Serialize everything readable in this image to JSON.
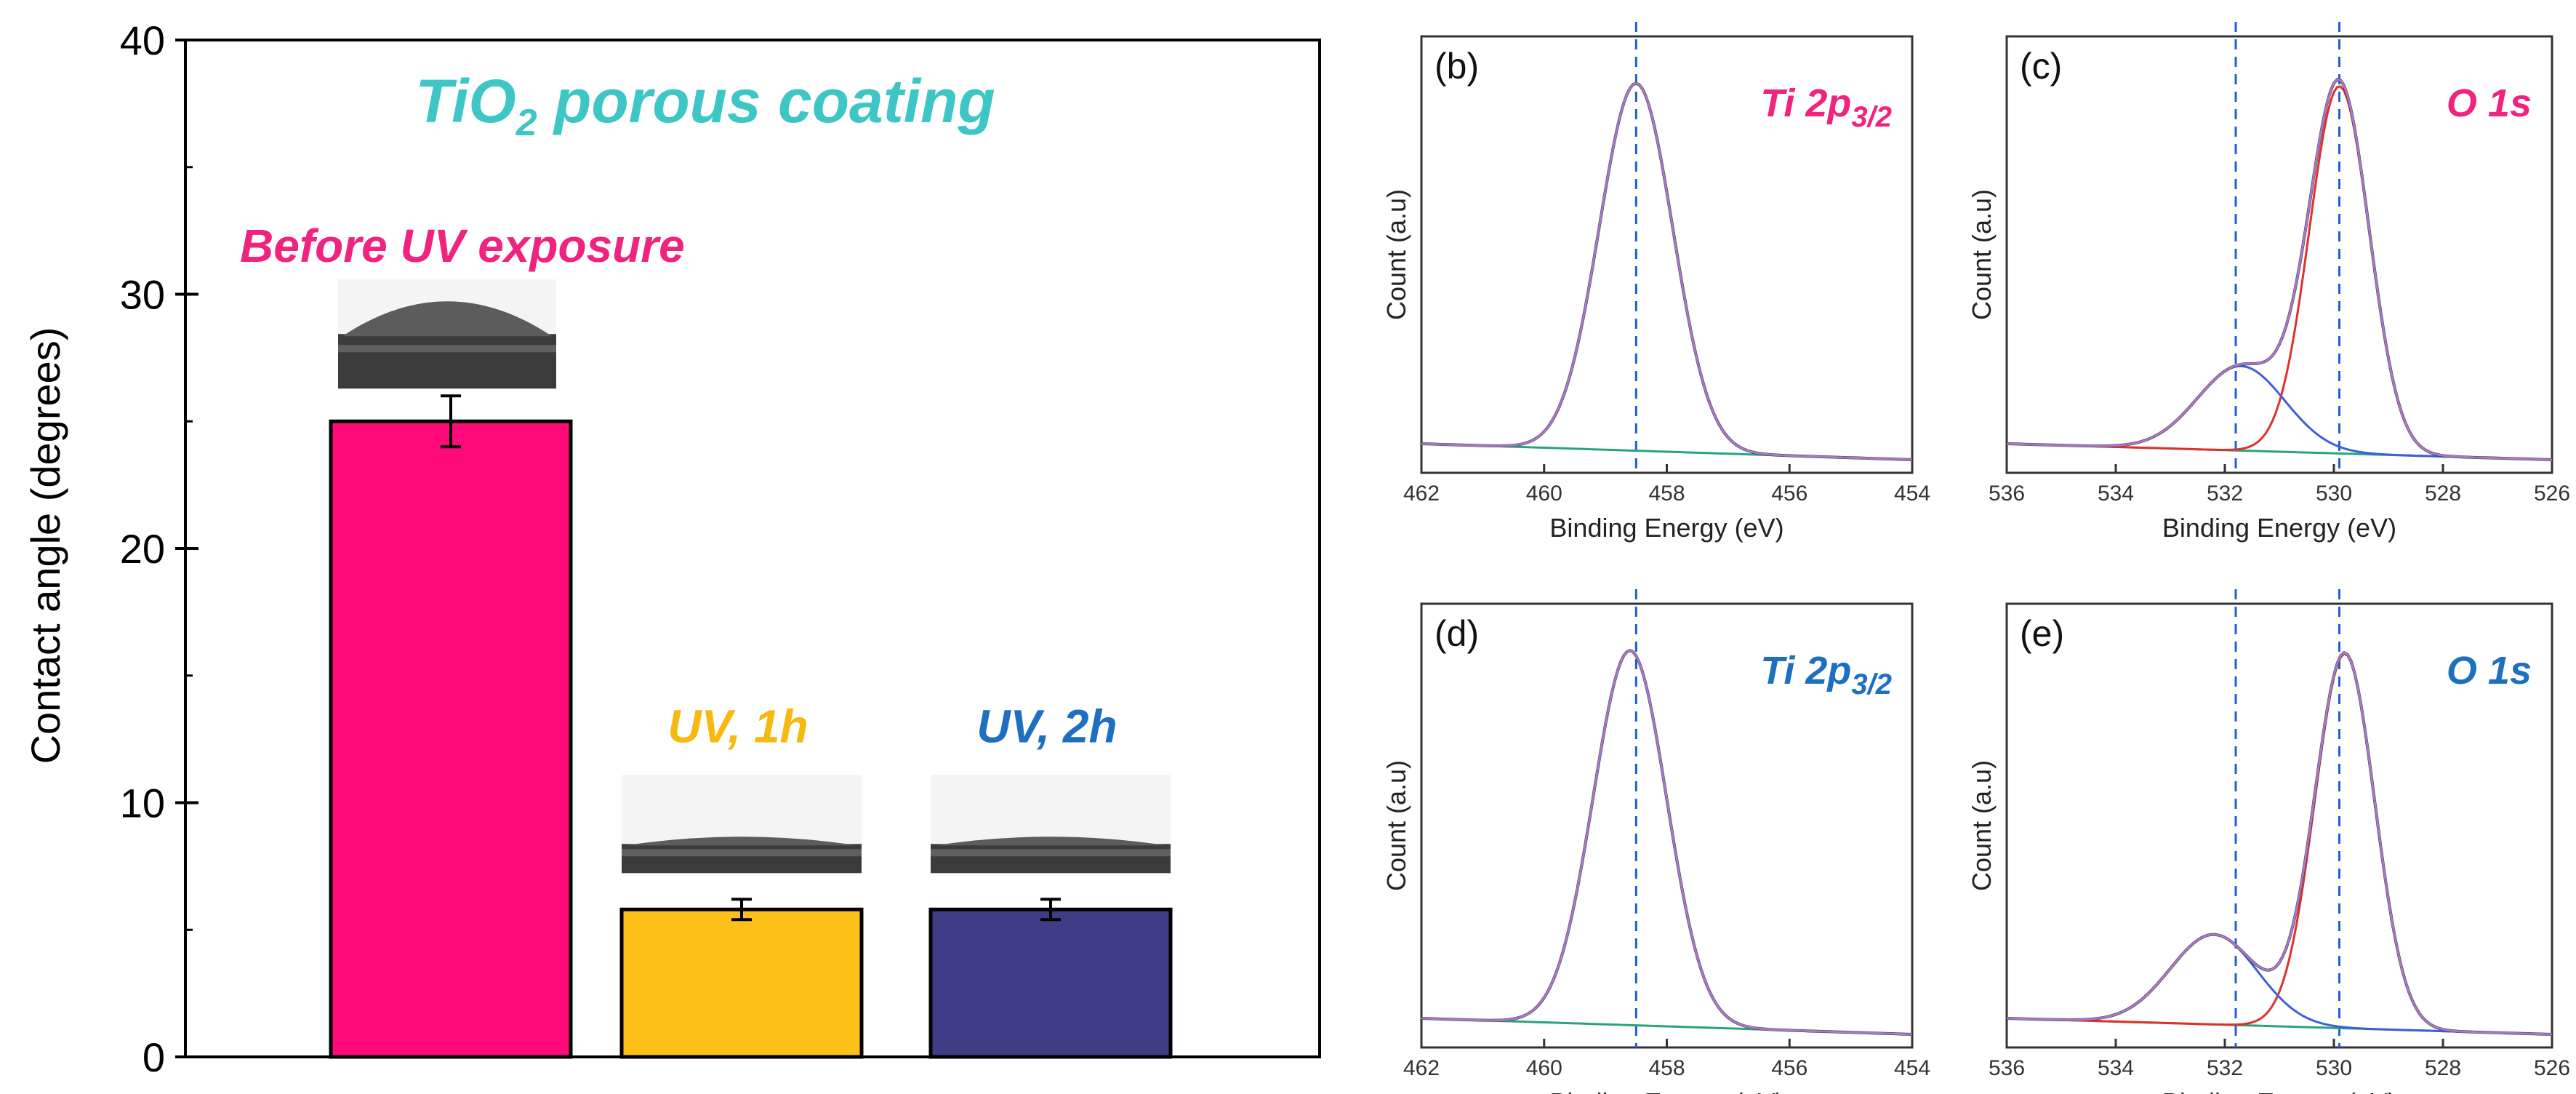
{
  "chart_data": [
    {
      "id": "a",
      "type": "bar",
      "title": "TiO2 porous coating",
      "title_main": "TiO",
      "title_sub": "2",
      "title_rest": " porous coating",
      "title_color": "#3ec6c6",
      "ylabel": "Contact angle (degrees)",
      "ylim": [
        0,
        40
      ],
      "yticks": [
        "0",
        "10",
        "20",
        "30",
        "40"
      ],
      "categories": [
        "Before UV exposure",
        "UV, 1h",
        "UV, 2h"
      ],
      "values": [
        25.0,
        5.8,
        5.8
      ],
      "errors": [
        1.0,
        0.4,
        0.4
      ],
      "colors": [
        "#ff0a78",
        "#fec117",
        "#3f3c86"
      ],
      "label_colors": [
        "#f0237f",
        "#f5b90f",
        "#1f6fc0"
      ],
      "droplet_images": [
        "water-droplet",
        "water-droplet",
        "water-droplet"
      ]
    },
    {
      "id": "b",
      "type": "line",
      "panel_label": "(b)",
      "element": "Ti 2p",
      "element_sub": "3/2",
      "element_color": "#f0237f",
      "xlabel": "Binding Energy (eV)",
      "ylabel": "Count (a.u)",
      "xlim": [
        462,
        454
      ],
      "xticks": [
        "462",
        "460",
        "458",
        "456",
        "454"
      ],
      "reference_line_eV": 458.5,
      "peaks_eV": [
        458.5
      ]
    },
    {
      "id": "c",
      "type": "line",
      "panel_label": "(c)",
      "element": "O 1s",
      "element_sub": "",
      "element_color": "#f0237f",
      "xlabel": "Binding Energy (eV)",
      "ylabel": "Count (a.u)",
      "xlim": [
        536,
        526
      ],
      "xticks": [
        "536",
        "534",
        "532",
        "530",
        "528",
        "526"
      ],
      "reference_lines_eV": [
        531.8,
        529.9
      ],
      "peaks_eV": [
        529.9,
        531.7
      ]
    },
    {
      "id": "d",
      "type": "line",
      "panel_label": "(d)",
      "element": "Ti 2p",
      "element_sub": "3/2",
      "element_color": "#1f6fc0",
      "xlabel": "Binding Energy (eV)",
      "ylabel": "Count (a.u)",
      "xlim": [
        462,
        454
      ],
      "xticks": [
        "462",
        "460",
        "458",
        "456",
        "454"
      ],
      "reference_line_eV": 458.5,
      "peaks_eV": [
        458.6
      ]
    },
    {
      "id": "e",
      "type": "line",
      "panel_label": "(e)",
      "element": "O 1s",
      "element_sub": "",
      "element_color": "#1f6fc0",
      "xlabel": "Binding Energy (eV)",
      "ylabel": "Count (a.u)",
      "xlim": [
        536,
        526
      ],
      "xticks": [
        "536",
        "534",
        "532",
        "530",
        "528",
        "526"
      ],
      "reference_lines_eV": [
        531.8,
        529.9
      ],
      "peaks_eV": [
        529.8,
        532.2
      ]
    }
  ]
}
